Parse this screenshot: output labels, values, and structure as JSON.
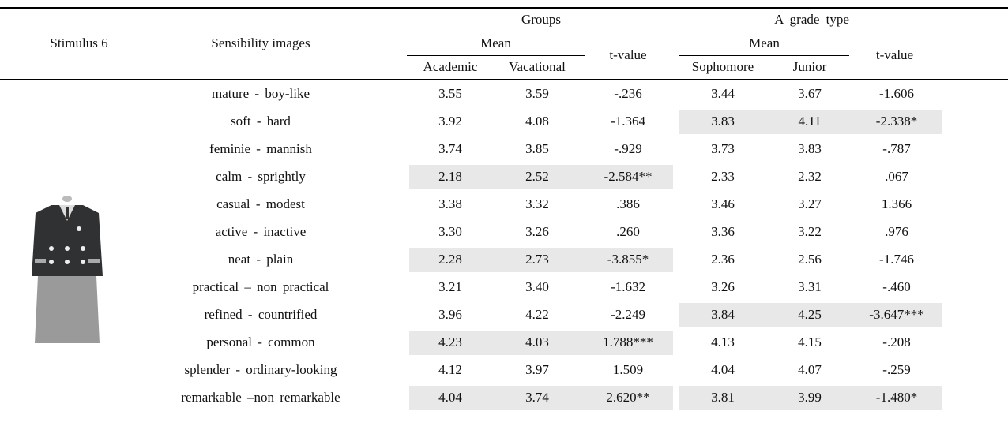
{
  "table": {
    "stimulus": "Stimulus 6",
    "header": {
      "images": "Sensibility images",
      "groups": "Groups",
      "grade": "A grade type",
      "mean_1": "Mean",
      "mean_2": "Mean",
      "t_1": "t-value",
      "t_2": "t-value",
      "columns": [
        "Academic",
        "Vacational",
        "Sophomore",
        "Junior"
      ]
    },
    "rows": [
      {
        "label": "mature - boy-like",
        "cells": [
          "3.55",
          "3.59",
          "-.236",
          "3.44",
          "3.67",
          "-1.606"
        ]
      },
      {
        "label": "soft - hard",
        "cells": [
          "3.92",
          "4.08",
          "-1.364",
          "3.83",
          "4.11",
          "-2.338*"
        ]
      },
      {
        "label": "feminie - mannish",
        "cells": [
          "3.74",
          "3.85",
          "-.929",
          "3.73",
          "3.83",
          "-.787"
        ]
      },
      {
        "label": "calm - sprightly",
        "cells": [
          "2.18",
          "2.52",
          "-2.584**",
          "2.33",
          "2.32",
          ".067"
        ]
      },
      {
        "label": "casual - modest",
        "cells": [
          "3.38",
          "3.32",
          ".386",
          "3.46",
          "3.27",
          "1.366"
        ]
      },
      {
        "label": "active - inactive",
        "cells": [
          "3.30",
          "3.26",
          ".260",
          "3.36",
          "3.22",
          ".976"
        ]
      },
      {
        "label": "neat - plain",
        "cells": [
          "2.28",
          "2.73",
          "-3.855*",
          "2.36",
          "2.56",
          "-1.746"
        ]
      },
      {
        "label": "practical – non practical",
        "cells": [
          "3.21",
          "3.40",
          "-1.632",
          "3.26",
          "3.31",
          "-.460"
        ]
      },
      {
        "label": "refined - countrified",
        "cells": [
          "3.96",
          "4.22",
          "-2.249",
          "3.84",
          "4.25",
          "-3.647***"
        ]
      },
      {
        "label": "personal - common",
        "cells": [
          "4.23",
          "4.03",
          "1.788***",
          "4.13",
          "4.15",
          "-.208"
        ]
      },
      {
        "label": "splender - ordinary-looking",
        "cells": [
          "4.12",
          "3.97",
          "1.509",
          "4.04",
          "4.07",
          "-.259"
        ]
      },
      {
        "label": "remarkable –non remarkable",
        "cells": [
          "4.04",
          "3.74",
          "2.620**",
          "3.81",
          "3.99",
          "-1.480*"
        ]
      }
    ]
  }
}
